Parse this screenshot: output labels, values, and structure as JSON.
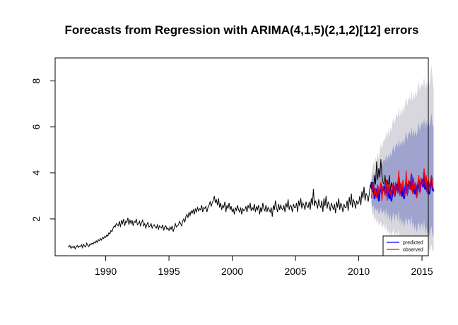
{
  "chart_data": {
    "type": "line",
    "title": "Forecasts from Regression with ARIMA(4,1,5)(2,1,2)[12] errors",
    "xlabel": "",
    "ylabel": "",
    "xlim": [
      1986,
      2015.5
    ],
    "ylim": [
      0.4,
      9.0
    ],
    "x_ticks": [
      1990,
      1995,
      2000,
      2005,
      2010,
      2015
    ],
    "y_ticks": [
      2,
      4,
      6,
      8
    ],
    "grid": false,
    "legend_position": "bottom-right",
    "colors": {
      "history": "#000000",
      "predicted": "#0000ff",
      "observed": "#ff0000",
      "band_80": "#a0a3cd",
      "band_95": "#d7d7dd"
    },
    "legend": [
      {
        "label": "predicted",
        "color": "#0000ff"
      },
      {
        "label": "observed",
        "color": "#ff0000"
      }
    ],
    "history": {
      "start": 1987.0,
      "frequency": 12,
      "values": [
        0.8,
        0.78,
        0.85,
        0.72,
        0.8,
        0.75,
        0.82,
        0.7,
        0.78,
        0.85,
        0.76,
        0.82,
        0.8,
        0.88,
        0.75,
        0.9,
        0.82,
        0.78,
        0.95,
        0.85,
        0.8,
        0.92,
        0.88,
        0.95,
        0.9,
        1.0,
        0.95,
        1.05,
        0.98,
        1.1,
        1.05,
        1.15,
        1.08,
        1.2,
        1.15,
        1.25,
        1.2,
        1.3,
        1.25,
        1.4,
        1.35,
        1.5,
        1.45,
        1.6,
        1.7,
        1.65,
        1.8,
        1.75,
        1.7,
        1.9,
        1.65,
        1.95,
        1.8,
        2.0,
        1.7,
        1.9,
        1.85,
        2.05,
        1.75,
        1.95,
        1.8,
        1.95,
        1.7,
        1.9,
        1.85,
        2.0,
        1.75,
        1.8,
        1.9,
        1.7,
        1.85,
        1.95,
        1.7,
        1.8,
        1.6,
        1.75,
        1.85,
        1.65,
        1.7,
        1.8,
        1.6,
        1.7,
        1.75,
        1.65,
        1.6,
        1.75,
        1.55,
        1.7,
        1.65,
        1.6,
        1.75,
        1.5,
        1.65,
        1.7,
        1.55,
        1.6,
        1.5,
        1.65,
        1.55,
        1.7,
        1.45,
        1.6,
        1.8,
        1.65,
        1.7,
        1.75,
        1.9,
        1.8,
        1.7,
        1.9,
        2.0,
        1.85,
        2.1,
        2.2,
        2.05,
        2.3,
        2.15,
        2.35,
        2.25,
        2.4,
        2.2,
        2.45,
        2.3,
        2.5,
        2.35,
        2.45,
        2.4,
        2.6,
        2.3,
        2.5,
        2.45,
        2.55,
        2.3,
        2.5,
        2.6,
        2.75,
        2.55,
        2.7,
        2.8,
        3.0,
        2.7,
        2.85,
        2.6,
        2.9,
        2.5,
        2.7,
        2.4,
        2.6,
        2.5,
        2.75,
        2.3,
        2.6,
        2.45,
        2.7,
        2.4,
        2.55,
        2.3,
        2.45,
        2.2,
        2.5,
        2.35,
        2.6,
        2.4,
        2.3,
        2.5,
        2.2,
        2.45,
        2.35,
        2.4,
        2.55,
        2.3,
        2.6,
        2.45,
        2.7,
        2.35,
        2.5,
        2.4,
        2.65,
        2.3,
        2.55,
        2.4,
        2.6,
        2.2,
        2.5,
        2.3,
        2.7,
        2.45,
        2.35,
        2.6,
        2.3,
        2.5,
        2.4,
        2.3,
        2.5,
        2.1,
        2.6,
        2.4,
        2.8,
        2.5,
        2.3,
        2.65,
        2.4,
        2.6,
        2.45,
        2.4,
        2.6,
        2.3,
        2.7,
        2.5,
        2.85,
        2.4,
        2.6,
        2.55,
        2.3,
        2.65,
        2.5,
        2.5,
        2.7,
        2.3,
        2.8,
        2.55,
        2.9,
        2.45,
        2.7,
        2.6,
        2.4,
        2.75,
        2.55,
        2.5,
        2.75,
        2.4,
        2.9,
        2.6,
        3.3,
        2.55,
        2.8,
        2.65,
        2.45,
        2.85,
        2.6,
        2.5,
        2.8,
        2.3,
        2.9,
        2.55,
        3.0,
        2.45,
        2.75,
        2.6,
        2.35,
        2.7,
        2.55,
        2.4,
        2.65,
        2.25,
        2.75,
        2.5,
        2.9,
        2.4,
        2.7,
        2.55,
        2.3,
        2.65,
        2.5,
        2.5,
        2.8,
        2.35,
        2.95,
        2.6,
        3.1,
        2.5,
        2.85,
        2.7,
        2.45,
        2.8,
        2.65,
        2.7,
        3.0,
        2.6,
        3.2,
        2.9,
        3.4,
        2.8,
        3.1,
        3.0,
        2.75,
        3.1,
        3.5,
        3.3,
        3.6,
        3.1,
        3.9,
        3.5,
        4.5,
        3.7,
        4.2,
        3.8,
        4.6,
        3.9,
        3.6,
        3.5,
        3.9,
        3.3,
        3.7,
        3.4,
        3.9,
        3.2,
        3.6,
        3.3,
        3.1,
        3.4,
        3.2
      ]
    },
    "forecast": {
      "start": 2011.0,
      "frequency": 12,
      "predicted": [
        3.6,
        3.2,
        3.5,
        2.9,
        3.3,
        3.0,
        3.4,
        2.8,
        3.2,
        3.5,
        3.1,
        3.3,
        3.4,
        3.1,
        3.6,
        3.0,
        3.4,
        2.9,
        3.3,
        2.8,
        3.2,
        3.5,
        3.0,
        3.4,
        3.5,
        3.2,
        3.8,
        3.1,
        3.5,
        3.0,
        3.4,
        2.9,
        3.3,
        3.6,
        3.1,
        3.5,
        3.6,
        3.3,
        3.9,
        3.2,
        3.6,
        3.1,
        3.5,
        3.0,
        3.4,
        3.7,
        3.2,
        3.6,
        3.7,
        3.4,
        4.0,
        3.3,
        3.7,
        3.2,
        3.6,
        3.1,
        3.5,
        3.8,
        3.3,
        3.2
      ],
      "observed": [
        2.9,
        3.4,
        3.6,
        3.0,
        3.3,
        2.9,
        3.5,
        3.1,
        3.2,
        3.6,
        2.8,
        3.4,
        3.3,
        3.0,
        3.7,
        2.8,
        3.5,
        3.1,
        3.2,
        2.9,
        3.4,
        3.6,
        3.0,
        3.6,
        3.3,
        3.1,
        4.1,
        3.0,
        3.6,
        3.2,
        3.7,
        3.0,
        3.1,
        4.1,
        3.0,
        3.7,
        3.5,
        3.3,
        4.0,
        3.1,
        3.8,
        3.3,
        3.6,
        2.9,
        3.3,
        3.9,
        3.1,
        3.8,
        3.6,
        3.5,
        4.2,
        3.4,
        3.9,
        3.1,
        3.7,
        3.2,
        3.6,
        3.9,
        3.4,
        3.3
      ],
      "lo80": [
        2.7,
        2.5,
        2.6,
        2.3,
        2.5,
        2.3,
        2.5,
        2.2,
        2.3,
        2.5,
        2.2,
        2.3,
        2.4,
        2.1,
        2.5,
        2.0,
        2.3,
        1.9,
        2.2,
        1.8,
        2.1,
        2.3,
        1.9,
        2.2,
        2.2,
        1.9,
        2.4,
        1.8,
        2.1,
        1.7,
        2.0,
        1.6,
        1.9,
        2.1,
        1.7,
        2.0,
        2.0,
        1.7,
        2.2,
        1.6,
        1.9,
        1.5,
        1.8,
        1.4,
        1.7,
        1.9,
        1.5,
        1.8,
        1.8,
        1.5,
        2.0,
        1.4,
        1.7,
        1.3,
        1.6,
        1.2,
        1.5,
        1.7,
        1.3,
        1.2
      ],
      "hi80": [
        3.7,
        3.8,
        4.0,
        3.8,
        4.1,
        3.9,
        4.2,
        4.0,
        4.3,
        4.5,
        4.3,
        4.5,
        4.6,
        4.5,
        4.8,
        4.5,
        4.8,
        4.6,
        4.9,
        4.7,
        5.0,
        5.2,
        4.9,
        5.2,
        5.3,
        5.1,
        5.5,
        5.1,
        5.4,
        5.2,
        5.5,
        5.2,
        5.5,
        5.8,
        5.4,
        5.7,
        5.8,
        5.6,
        6.0,
        5.6,
        5.9,
        5.6,
        5.9,
        5.6,
        5.9,
        6.2,
        5.8,
        6.1,
        6.2,
        6.0,
        6.4,
        5.9,
        6.3,
        6.0,
        6.3,
        6.0,
        6.3,
        6.6,
        6.1,
        6.0
      ],
      "lo95": [
        2.5,
        2.2,
        2.2,
        1.9,
        2.1,
        1.8,
        2.0,
        1.7,
        1.8,
        1.9,
        1.6,
        1.7,
        1.8,
        1.5,
        1.8,
        1.3,
        1.6,
        1.2,
        1.5,
        1.1,
        1.4,
        1.6,
        1.1,
        1.4,
        1.4,
        1.1,
        1.6,
        1.0,
        1.3,
        0.9,
        1.2,
        0.8,
        1.1,
        1.3,
        0.9,
        1.1,
        1.2,
        0.9,
        1.4,
        0.8,
        1.1,
        0.7,
        1.0,
        0.6,
        0.9,
        1.1,
        0.7,
        1.0,
        1.0,
        0.7,
        1.2,
        0.6,
        0.9,
        0.6,
        0.8,
        0.6,
        0.7,
        0.9,
        0.6,
        0.6
      ],
      "hi95": [
        3.9,
        4.2,
        4.5,
        4.3,
        4.7,
        4.5,
        4.9,
        4.6,
        5.0,
        5.3,
        5.0,
        5.3,
        5.5,
        5.4,
        5.8,
        5.5,
        5.9,
        5.6,
        6.0,
        5.8,
        6.2,
        6.4,
        6.1,
        6.4,
        6.6,
        6.4,
        6.9,
        6.4,
        6.8,
        6.5,
        6.9,
        6.6,
        7.0,
        7.3,
        6.9,
        7.2,
        7.3,
        7.1,
        7.6,
        7.1,
        7.5,
        7.2,
        7.6,
        7.3,
        7.7,
        8.0,
        7.5,
        7.8,
        7.9,
        7.7,
        8.2,
        7.6,
        8.0,
        7.7,
        8.1,
        7.8,
        8.2,
        8.7,
        8.1,
        7.6
      ]
    }
  }
}
